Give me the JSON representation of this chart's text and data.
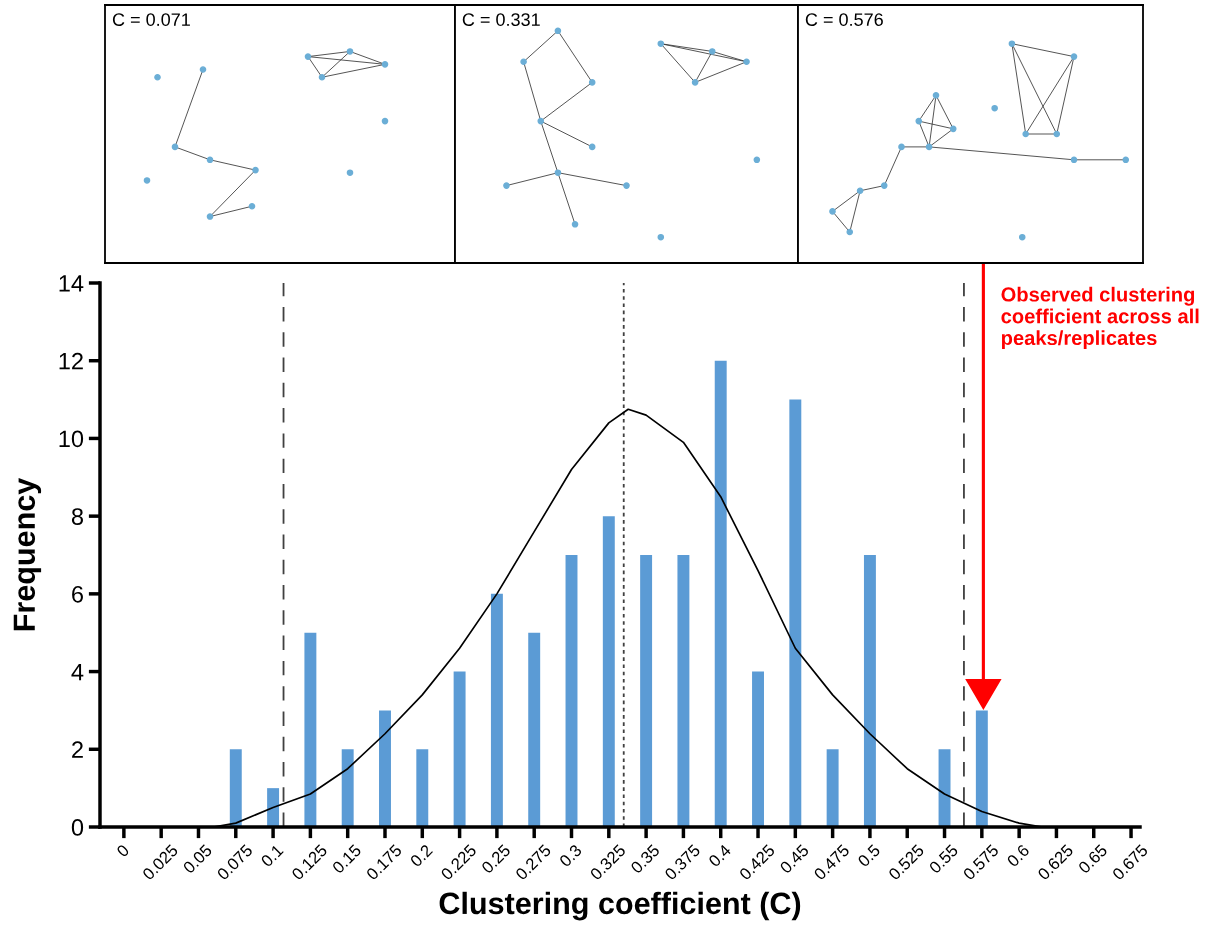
{
  "chart_data": {
    "type": "bar",
    "xlabel": "Clustering coefficient (C)",
    "ylabel": "Frequency",
    "x": [
      0,
      0.025,
      0.05,
      0.075,
      0.1,
      0.125,
      0.15,
      0.175,
      0.2,
      0.225,
      0.25,
      0.275,
      0.3,
      0.325,
      0.35,
      0.375,
      0.4,
      0.425,
      0.45,
      0.475,
      0.5,
      0.525,
      0.55,
      0.575,
      0.6,
      0.625,
      0.65,
      0.675
    ],
    "series": [
      {
        "color": "#5b9bd5",
        "values": [
          0,
          0,
          0,
          2,
          1,
          5,
          2,
          3,
          2,
          4,
          6,
          5,
          7,
          8,
          7,
          7,
          12,
          4,
          11,
          2,
          7,
          0,
          2,
          3,
          0,
          0,
          0,
          0
        ]
      },
      {
        "type": "line",
        "color": "#000000",
        "x": [
          0.06,
          0.075,
          0.1,
          0.125,
          0.15,
          0.175,
          0.2,
          0.225,
          0.25,
          0.275,
          0.3,
          0.325,
          0.338,
          0.35,
          0.375,
          0.4,
          0.425,
          0.45,
          0.475,
          0.5,
          0.525,
          0.55,
          0.575,
          0.6,
          0.615
        ],
        "values": [
          0,
          0.1,
          0.5,
          0.85,
          1.5,
          2.4,
          3.4,
          4.6,
          6.0,
          7.6,
          9.2,
          10.4,
          10.75,
          10.6,
          9.9,
          8.5,
          6.6,
          4.6,
          3.4,
          2.4,
          1.5,
          0.85,
          0.4,
          0.1,
          0
        ]
      }
    ],
    "xlim": [
      -0.016,
      0.681
    ],
    "xticks": [
      0,
      0.025,
      0.05,
      0.075,
      0.1,
      0.125,
      0.15,
      0.175,
      0.2,
      0.225,
      0.25,
      0.275,
      0.3,
      0.325,
      0.35,
      0.375,
      0.4,
      0.425,
      0.45,
      0.475,
      0.5,
      0.525,
      0.55,
      0.575,
      0.6,
      0.625,
      0.65,
      0.675
    ],
    "ylim": [
      0,
      14
    ],
    "yticks": [
      0,
      2,
      4,
      6,
      8,
      10,
      12,
      14
    ],
    "grid": false,
    "legend": false,
    "ref_lines": [
      {
        "axis": "x",
        "value": 0.107,
        "line_style": "dashed",
        "color": "#404040"
      },
      {
        "axis": "x",
        "value": 0.335,
        "line_style": "dotted",
        "color": "#404040"
      },
      {
        "axis": "x",
        "value": 0.563,
        "line_style": "dashed",
        "color": "#404040"
      }
    ],
    "annotations": [
      "C = 0.071",
      "C = 0.331",
      "C = 0.576",
      "Observed clustering coefficient across all peaks/replicates"
    ]
  }
}
